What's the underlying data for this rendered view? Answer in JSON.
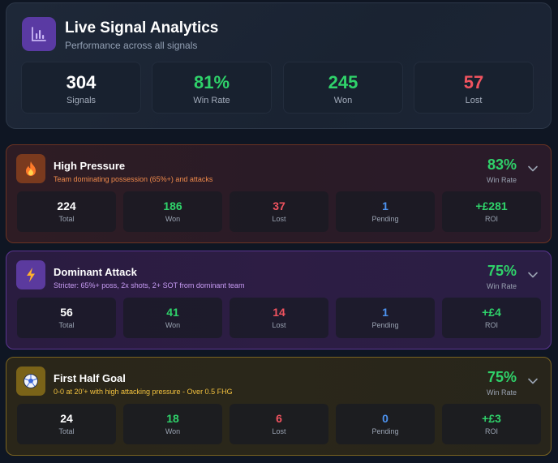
{
  "header": {
    "title": "Live Signal Analytics",
    "subtitle": "Performance across all signals",
    "icon": "bar-chart-icon",
    "stats": [
      {
        "value": "304",
        "label": "Signals"
      },
      {
        "value": "81%",
        "label": "Win Rate"
      },
      {
        "value": "245",
        "label": "Won"
      },
      {
        "value": "57",
        "label": "Lost"
      }
    ]
  },
  "signals": [
    {
      "title": "High Pressure",
      "description": "Team dominating possession (65%+) and attacks",
      "icon": "fire-icon",
      "win_rate": "83%",
      "win_rate_label": "Win Rate",
      "stats": [
        {
          "value": "224",
          "label": "Total"
        },
        {
          "value": "186",
          "label": "Won"
        },
        {
          "value": "37",
          "label": "Lost"
        },
        {
          "value": "1",
          "label": "Pending"
        },
        {
          "value": "+£281",
          "label": "ROI"
        }
      ]
    },
    {
      "title": "Dominant Attack",
      "description": "Stricter: 65%+ poss, 2x shots, 2+ SOT from dominant team",
      "icon": "lightning-icon",
      "win_rate": "75%",
      "win_rate_label": "Win Rate",
      "stats": [
        {
          "value": "56",
          "label": "Total"
        },
        {
          "value": "41",
          "label": "Won"
        },
        {
          "value": "14",
          "label": "Lost"
        },
        {
          "value": "1",
          "label": "Pending"
        },
        {
          "value": "+£4",
          "label": "ROI"
        }
      ]
    },
    {
      "title": "First Half Goal",
      "description": "0-0 at 20'+ with high attacking pressure - Over 0.5 FHG",
      "icon": "soccer-ball-icon",
      "win_rate": "75%",
      "win_rate_label": "Win Rate",
      "stats": [
        {
          "value": "24",
          "label": "Total"
        },
        {
          "value": "18",
          "label": "Won"
        },
        {
          "value": "6",
          "label": "Lost"
        },
        {
          "value": "0",
          "label": "Pending"
        },
        {
          "value": "+£3",
          "label": "ROI"
        }
      ]
    }
  ],
  "colors": {
    "win": "#2fd26a",
    "loss": "#f0535f",
    "pending": "#4d93f0",
    "accent": "#5a3aa3"
  }
}
